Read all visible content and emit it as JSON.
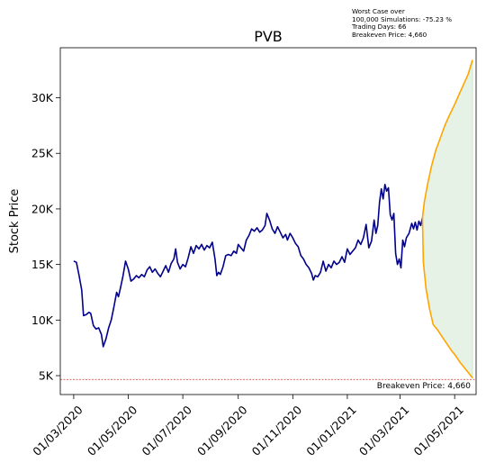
{
  "info": {
    "worst_case_line1": "Worst Case over",
    "worst_case_line2": "100,000 Simulations: -75.23 %",
    "trading_days": "Trading Days: 66",
    "breakeven": "Breakeven Price: 4,660"
  },
  "chart_data": {
    "type": "line",
    "title": "PVB",
    "xlabel": "",
    "ylabel": "Stock Price",
    "x_axis": {
      "type": "date",
      "range": [
        "2020-02-15",
        "2021-05-25"
      ],
      "tick_labels": [
        "01/03/2020",
        "01/05/2020",
        "01/07/2020",
        "01/09/2020",
        "01/11/2020",
        "01/01/2021",
        "01/03/2021",
        "01/05/2021"
      ],
      "tick_dates": [
        "2020-03-01",
        "2020-05-01",
        "2020-07-01",
        "2020-09-01",
        "2020-11-01",
        "2021-01-01",
        "2021-03-01",
        "2021-05-01"
      ]
    },
    "y_axis": {
      "range": [
        3300,
        34500
      ],
      "tick_values": [
        5000,
        10000,
        15000,
        20000,
        25000,
        30000
      ],
      "tick_labels": [
        "5K",
        "10K",
        "15K",
        "20K",
        "25K",
        "30K"
      ]
    },
    "grid": false,
    "colors": {
      "history": "#00008b",
      "projection": "#ffa500",
      "band_fill": "#e5f2e5",
      "band_edge": "#cfe6cf",
      "breakeven": "#cc3333"
    },
    "history": [
      [
        "2020-03-01",
        15300
      ],
      [
        "2020-03-04",
        15200
      ],
      [
        "2020-03-07",
        14000
      ],
      [
        "2020-03-10",
        12700
      ],
      [
        "2020-03-12",
        10400
      ],
      [
        "2020-03-15",
        10500
      ],
      [
        "2020-03-18",
        10700
      ],
      [
        "2020-03-20",
        10600
      ],
      [
        "2020-03-23",
        9500
      ],
      [
        "2020-03-26",
        9200
      ],
      [
        "2020-03-29",
        9300
      ],
      [
        "2020-04-01",
        8700
      ],
      [
        "2020-04-03",
        7600
      ],
      [
        "2020-04-06",
        8300
      ],
      [
        "2020-04-09",
        9300
      ],
      [
        "2020-04-12",
        10000
      ],
      [
        "2020-04-15",
        11200
      ],
      [
        "2020-04-18",
        12500
      ],
      [
        "2020-04-20",
        12100
      ],
      [
        "2020-04-22",
        12800
      ],
      [
        "2020-04-25",
        13900
      ],
      [
        "2020-04-28",
        15300
      ],
      [
        "2020-05-01",
        14600
      ],
      [
        "2020-05-04",
        13500
      ],
      [
        "2020-05-07",
        13700
      ],
      [
        "2020-05-10",
        14000
      ],
      [
        "2020-05-13",
        13800
      ],
      [
        "2020-05-16",
        14100
      ],
      [
        "2020-05-19",
        13900
      ],
      [
        "2020-05-22",
        14500
      ],
      [
        "2020-05-25",
        14800
      ],
      [
        "2020-05-28",
        14300
      ],
      [
        "2020-05-31",
        14600
      ],
      [
        "2020-06-03",
        14200
      ],
      [
        "2020-06-06",
        13900
      ],
      [
        "2020-06-09",
        14400
      ],
      [
        "2020-06-12",
        14900
      ],
      [
        "2020-06-15",
        14300
      ],
      [
        "2020-06-18",
        15100
      ],
      [
        "2020-06-21",
        15500
      ],
      [
        "2020-06-23",
        16400
      ],
      [
        "2020-06-25",
        15200
      ],
      [
        "2020-06-28",
        14600
      ],
      [
        "2020-07-01",
        15000
      ],
      [
        "2020-07-04",
        14800
      ],
      [
        "2020-07-07",
        15600
      ],
      [
        "2020-07-10",
        16600
      ],
      [
        "2020-07-13",
        16000
      ],
      [
        "2020-07-16",
        16700
      ],
      [
        "2020-07-19",
        16400
      ],
      [
        "2020-07-22",
        16800
      ],
      [
        "2020-07-25",
        16300
      ],
      [
        "2020-07-28",
        16700
      ],
      [
        "2020-07-31",
        16500
      ],
      [
        "2020-08-03",
        17000
      ],
      [
        "2020-08-06",
        15500
      ],
      [
        "2020-08-08",
        14000
      ],
      [
        "2020-08-10",
        14300
      ],
      [
        "2020-08-12",
        14100
      ],
      [
        "2020-08-15",
        14800
      ],
      [
        "2020-08-18",
        15800
      ],
      [
        "2020-08-21",
        15900
      ],
      [
        "2020-08-24",
        15800
      ],
      [
        "2020-08-27",
        16200
      ],
      [
        "2020-08-30",
        16000
      ],
      [
        "2020-09-01",
        16800
      ],
      [
        "2020-09-04",
        16500
      ],
      [
        "2020-09-07",
        16200
      ],
      [
        "2020-09-10",
        17200
      ],
      [
        "2020-09-13",
        17600
      ],
      [
        "2020-09-16",
        18200
      ],
      [
        "2020-09-19",
        18000
      ],
      [
        "2020-09-22",
        18300
      ],
      [
        "2020-09-25",
        17900
      ],
      [
        "2020-09-28",
        18100
      ],
      [
        "2020-10-01",
        18500
      ],
      [
        "2020-10-03",
        19600
      ],
      [
        "2020-10-06",
        19000
      ],
      [
        "2020-10-09",
        18200
      ],
      [
        "2020-10-12",
        17800
      ],
      [
        "2020-10-15",
        18400
      ],
      [
        "2020-10-18",
        17900
      ],
      [
        "2020-10-21",
        17400
      ],
      [
        "2020-10-24",
        17700
      ],
      [
        "2020-10-26",
        17200
      ],
      [
        "2020-10-29",
        17800
      ],
      [
        "2020-11-01",
        17400
      ],
      [
        "2020-11-04",
        16900
      ],
      [
        "2020-11-07",
        16600
      ],
      [
        "2020-11-10",
        15800
      ],
      [
        "2020-11-13",
        15500
      ],
      [
        "2020-11-16",
        15000
      ],
      [
        "2020-11-19",
        14700
      ],
      [
        "2020-11-22",
        14200
      ],
      [
        "2020-11-24",
        13600
      ],
      [
        "2020-11-26",
        14000
      ],
      [
        "2020-11-29",
        13900
      ],
      [
        "2020-12-02",
        14300
      ],
      [
        "2020-12-05",
        15300
      ],
      [
        "2020-12-08",
        14400
      ],
      [
        "2020-12-11",
        15000
      ],
      [
        "2020-12-14",
        14700
      ],
      [
        "2020-12-17",
        15300
      ],
      [
        "2020-12-20",
        15000
      ],
      [
        "2020-12-23",
        15200
      ],
      [
        "2020-12-26",
        15700
      ],
      [
        "2020-12-29",
        15200
      ],
      [
        "2021-01-01",
        16400
      ],
      [
        "2021-01-04",
        15900
      ],
      [
        "2021-01-07",
        16200
      ],
      [
        "2021-01-10",
        16500
      ],
      [
        "2021-01-13",
        17200
      ],
      [
        "2021-01-16",
        16800
      ],
      [
        "2021-01-19",
        17400
      ],
      [
        "2021-01-22",
        18600
      ],
      [
        "2021-01-25",
        16500
      ],
      [
        "2021-01-28",
        17100
      ],
      [
        "2021-01-31",
        19000
      ],
      [
        "2021-02-02",
        17800
      ],
      [
        "2021-02-04",
        18500
      ],
      [
        "2021-02-06",
        20600
      ],
      [
        "2021-02-08",
        21800
      ],
      [
        "2021-02-10",
        20900
      ],
      [
        "2021-02-12",
        22200
      ],
      [
        "2021-02-14",
        21600
      ],
      [
        "2021-02-16",
        21900
      ],
      [
        "2021-02-18",
        19500
      ],
      [
        "2021-02-20",
        19000
      ],
      [
        "2021-02-22",
        19600
      ],
      [
        "2021-02-24",
        16000
      ],
      [
        "2021-02-26",
        15000
      ],
      [
        "2021-02-28",
        15500
      ],
      [
        "2021-03-02",
        14700
      ],
      [
        "2021-03-04",
        17200
      ],
      [
        "2021-03-06",
        16600
      ],
      [
        "2021-03-08",
        17400
      ],
      [
        "2021-03-11",
        17800
      ],
      [
        "2021-03-14",
        18700
      ],
      [
        "2021-03-16",
        18200
      ],
      [
        "2021-03-18",
        18800
      ],
      [
        "2021-03-20",
        18100
      ],
      [
        "2021-03-22",
        18900
      ],
      [
        "2021-03-24",
        18500
      ],
      [
        "2021-03-26",
        19200
      ]
    ],
    "projection_upper": [
      [
        "2021-03-26",
        19200
      ],
      [
        "2021-03-28",
        20600
      ],
      [
        "2021-04-01",
        22300
      ],
      [
        "2021-04-05",
        23800
      ],
      [
        "2021-04-10",
        25300
      ],
      [
        "2021-04-15",
        26400
      ],
      [
        "2021-04-20",
        27500
      ],
      [
        "2021-04-25",
        28400
      ],
      [
        "2021-05-01",
        29400
      ],
      [
        "2021-05-06",
        30300
      ],
      [
        "2021-05-11",
        31200
      ],
      [
        "2021-05-16",
        32100
      ],
      [
        "2021-05-21",
        33400
      ]
    ],
    "projection_lower": [
      [
        "2021-03-26",
        19200
      ],
      [
        "2021-03-27",
        15200
      ],
      [
        "2021-03-30",
        12800
      ],
      [
        "2021-04-03",
        11000
      ],
      [
        "2021-04-07",
        9600
      ],
      [
        "2021-04-12",
        9100
      ],
      [
        "2021-04-17",
        8500
      ],
      [
        "2021-04-22",
        7900
      ],
      [
        "2021-04-27",
        7300
      ],
      [
        "2021-05-02",
        6800
      ],
      [
        "2021-05-07",
        6200
      ],
      [
        "2021-05-12",
        5700
      ],
      [
        "2021-05-17",
        5200
      ],
      [
        "2021-05-21",
        4800
      ]
    ],
    "breakeven_price": 4660,
    "breakeven_label": "Breakeven Price: 4,660"
  }
}
